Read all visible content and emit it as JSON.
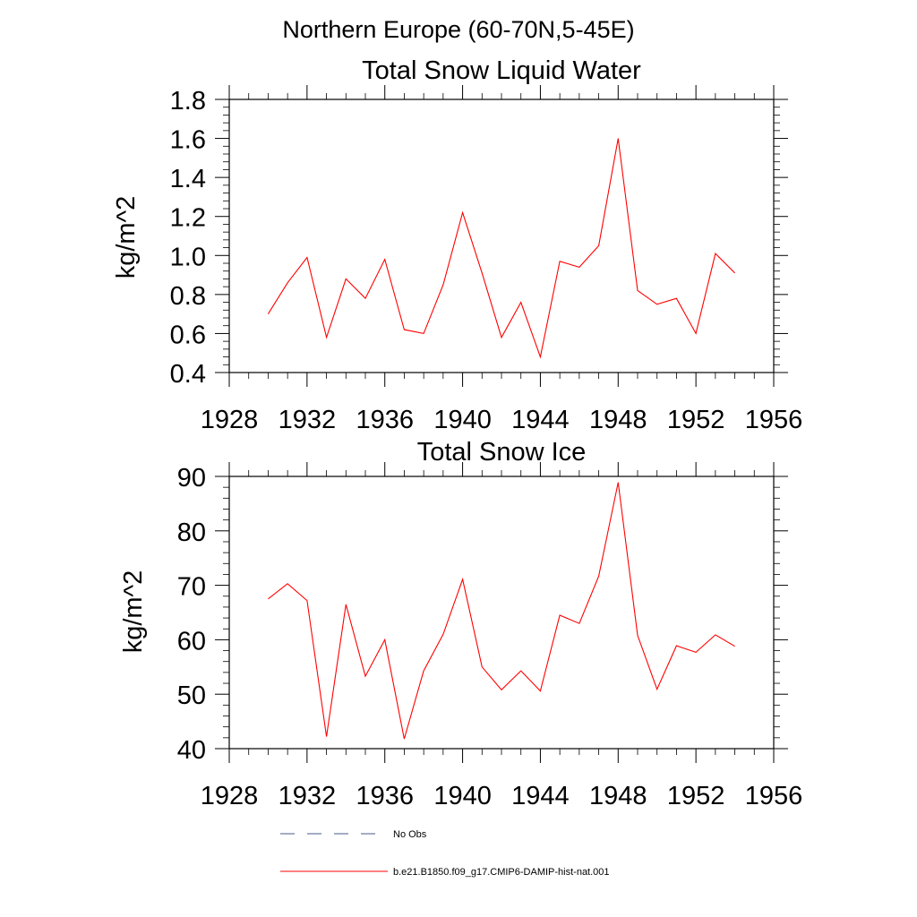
{
  "figure": {
    "main_title": "Northern Europe (60-70N,5-45E)"
  },
  "chart_data": [
    {
      "type": "line",
      "title": "Total Snow Liquid Water",
      "xlabel": "",
      "ylabel": "kg/m^2",
      "xlim": [
        1928,
        1956
      ],
      "ylim": [
        0.4,
        1.8
      ],
      "xticks": [
        1928,
        1932,
        1936,
        1940,
        1944,
        1948,
        1952,
        1956
      ],
      "xtick_labels": [
        "1928",
        "1932",
        "1936",
        "1940",
        "1944",
        "1948",
        "1952",
        "1956"
      ],
      "yticks": [
        0.4,
        0.6,
        0.8,
        1.0,
        1.2,
        1.4,
        1.6,
        1.8
      ],
      "ytick_labels": [
        "0.4",
        "0.6",
        "0.8",
        "1.0",
        "1.2",
        "1.4",
        "1.6",
        "1.8"
      ],
      "grid": false,
      "series": [
        {
          "name": "b.e21.B1850.f09_g17.CMIP6-DAMIP-hist-nat.001",
          "color": "#ff0000",
          "x": [
            1930,
            1931,
            1932,
            1933,
            1934,
            1935,
            1936,
            1937,
            1938,
            1939,
            1940,
            1941,
            1942,
            1943,
            1944,
            1945,
            1946,
            1947,
            1948,
            1949,
            1950,
            1951,
            1952,
            1953,
            1954
          ],
          "y": [
            0.7,
            0.86,
            0.99,
            0.58,
            0.88,
            0.78,
            0.98,
            0.62,
            0.6,
            0.85,
            1.22,
            0.91,
            0.58,
            0.76,
            0.48,
            0.97,
            0.94,
            1.05,
            1.6,
            0.82,
            0.75,
            0.78,
            0.6,
            1.01,
            0.91
          ]
        }
      ]
    },
    {
      "type": "line",
      "title": "Total Snow Ice",
      "xlabel": "",
      "ylabel": "kg/m^2",
      "xlim": [
        1928,
        1956
      ],
      "ylim": [
        40,
        90
      ],
      "xticks": [
        1928,
        1932,
        1936,
        1940,
        1944,
        1948,
        1952,
        1956
      ],
      "xtick_labels": [
        "1928",
        "1932",
        "1936",
        "1940",
        "1944",
        "1948",
        "1952",
        "1956"
      ],
      "yticks": [
        40,
        50,
        60,
        70,
        80,
        90
      ],
      "ytick_labels": [
        "40",
        "50",
        "60",
        "70",
        "80",
        "90"
      ],
      "grid": false,
      "series": [
        {
          "name": "b.e21.B1850.f09_g17.CMIP6-DAMIP-hist-nat.001",
          "color": "#ff0000",
          "x": [
            1930,
            1931,
            1932,
            1933,
            1934,
            1935,
            1936,
            1937,
            1938,
            1939,
            1940,
            1941,
            1942,
            1943,
            1944,
            1945,
            1946,
            1947,
            1948,
            1949,
            1950,
            1951,
            1952,
            1953,
            1954
          ],
          "y": [
            67.5,
            70.3,
            67.2,
            42.2,
            66.5,
            53.3,
            60.0,
            41.8,
            54.3,
            61.0,
            71.1,
            55.0,
            50.8,
            54.3,
            50.6,
            64.5,
            63.0,
            71.7,
            88.9,
            60.8,
            50.9,
            58.9,
            57.7,
            60.9,
            58.8
          ]
        }
      ]
    }
  ],
  "legend": {
    "items": [
      {
        "label": "No Obs",
        "color": "#4a5a8a",
        "style": "dashed"
      },
      {
        "label": "b.e21.B1850.f09_g17.CMIP6-DAMIP-hist-nat.001",
        "color": "#ff0000",
        "style": "solid"
      }
    ]
  }
}
